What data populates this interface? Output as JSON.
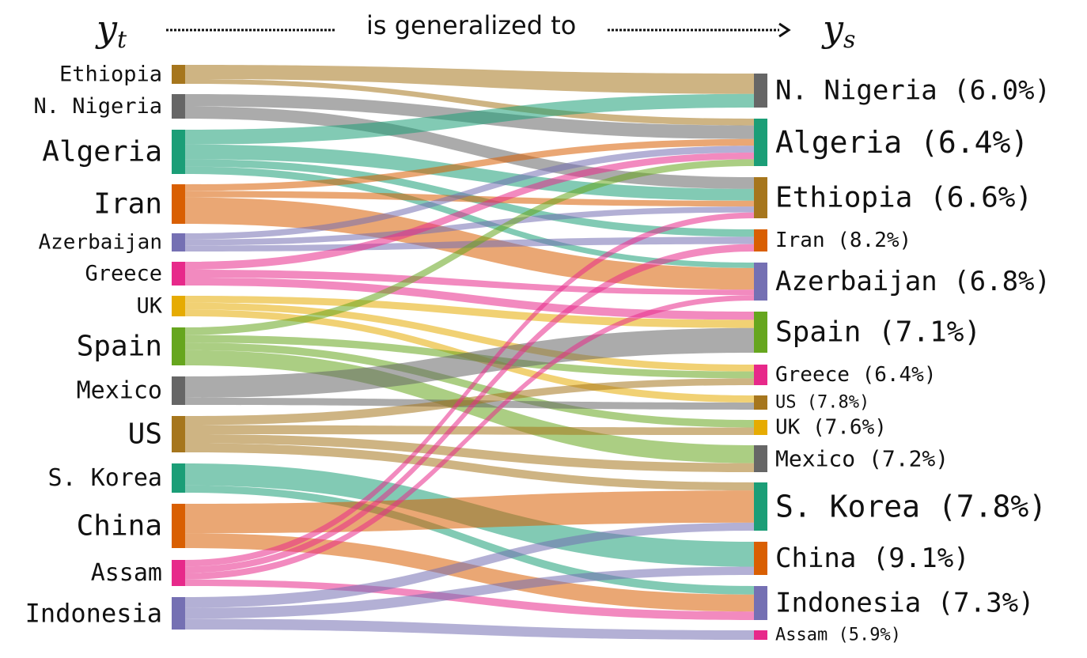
{
  "header": {
    "left_var": "y",
    "left_sub": "t",
    "middle": "is generalized to",
    "right_var": "y",
    "right_sub": "s"
  },
  "colors": {
    "tan": "#a6761d",
    "gray": "#666666",
    "teal": "#1b9e77",
    "orange": "#d95f02",
    "purple": "#7570b3",
    "pink": "#e7298a",
    "yellow": "#e6ab02",
    "green": "#66a61e"
  },
  "left_nodes": [
    {
      "label": "Ethiopia",
      "color": "#a6761d"
    },
    {
      "label": "N. Nigeria",
      "color": "#666666"
    },
    {
      "label": "Algeria",
      "color": "#1b9e77"
    },
    {
      "label": "Iran",
      "color": "#d95f02"
    },
    {
      "label": "Azerbaijan",
      "color": "#7570b3"
    },
    {
      "label": "Greece",
      "color": "#e7298a"
    },
    {
      "label": "UK",
      "color": "#e6ab02"
    },
    {
      "label": "Spain",
      "color": "#66a61e"
    },
    {
      "label": "Mexico",
      "color": "#666666"
    },
    {
      "label": "US",
      "color": "#a6761d"
    },
    {
      "label": "S. Korea",
      "color": "#1b9e77"
    },
    {
      "label": "China",
      "color": "#d95f02"
    },
    {
      "label": "Assam",
      "color": "#e7298a"
    },
    {
      "label": "Indonesia",
      "color": "#7570b3"
    }
  ],
  "right_nodes": [
    {
      "label": "N. Nigeria (6.0%)",
      "color": "#666666"
    },
    {
      "label": "Algeria (6.4%)",
      "color": "#1b9e77"
    },
    {
      "label": "Ethiopia (6.6%)",
      "color": "#a6761d"
    },
    {
      "label": "Iran (8.2%)",
      "color": "#d95f02"
    },
    {
      "label": "Azerbaijan (6.8%)",
      "color": "#7570b3"
    },
    {
      "label": "Spain (7.1%)",
      "color": "#66a61e"
    },
    {
      "label": "Greece (6.4%)",
      "color": "#e7298a"
    },
    {
      "label": "US (7.8%)",
      "color": "#a6761d"
    },
    {
      "label": "UK (7.6%)",
      "color": "#e6ab02"
    },
    {
      "label": "Mexico (7.2%)",
      "color": "#666666"
    },
    {
      "label": "S. Korea (7.8%)",
      "color": "#1b9e77"
    },
    {
      "label": "China (9.1%)",
      "color": "#d95f02"
    },
    {
      "label": "Indonesia (7.3%)",
      "color": "#7570b3"
    },
    {
      "label": "Assam (5.9%)",
      "color": "#e7298a"
    }
  ],
  "flows": [
    {
      "source": "Ethiopia",
      "target": "N. Nigeria (6.0%)",
      "weight": 3
    },
    {
      "source": "Ethiopia",
      "target": "Algeria (6.4%)",
      "weight": 1
    },
    {
      "source": "N. Nigeria",
      "target": "Algeria (6.4%)",
      "weight": 2
    },
    {
      "source": "N. Nigeria",
      "target": "Ethiopia (6.6%)",
      "weight": 2
    },
    {
      "source": "Algeria",
      "target": "N. Nigeria (6.0%)",
      "weight": 2
    },
    {
      "source": "Algeria",
      "target": "Ethiopia (6.6%)",
      "weight": 2
    },
    {
      "source": "Algeria",
      "target": "Iran (8.2%)",
      "weight": 1
    },
    {
      "source": "Algeria",
      "target": "Azerbaijan (6.8%)",
      "weight": 1
    },
    {
      "source": "Iran",
      "target": "Algeria (6.4%)",
      "weight": 1
    },
    {
      "source": "Iran",
      "target": "Ethiopia (6.6%)",
      "weight": 1
    },
    {
      "source": "Iran",
      "target": "Azerbaijan (6.8%)",
      "weight": 4
    },
    {
      "source": "Azerbaijan",
      "target": "Algeria (6.4%)",
      "weight": 1
    },
    {
      "source": "Azerbaijan",
      "target": "Ethiopia (6.6%)",
      "weight": 1
    },
    {
      "source": "Azerbaijan",
      "target": "Iran (8.2%)",
      "weight": 1
    },
    {
      "source": "Greece",
      "target": "Algeria (6.4%)",
      "weight": 1
    },
    {
      "source": "Greece",
      "target": "Azerbaijan (6.8%)",
      "weight": 1
    },
    {
      "source": "Greece",
      "target": "Spain (7.1%)",
      "weight": 1
    },
    {
      "source": "UK",
      "target": "Spain (7.1%)",
      "weight": 1
    },
    {
      "source": "UK",
      "target": "Greece (6.4%)",
      "weight": 1
    },
    {
      "source": "UK",
      "target": "US (7.8%)",
      "weight": 1
    },
    {
      "source": "Spain",
      "target": "Algeria (6.4%)",
      "weight": 1
    },
    {
      "source": "Spain",
      "target": "Greece (6.4%)",
      "weight": 1
    },
    {
      "source": "Spain",
      "target": "UK (7.6%)",
      "weight": 1
    },
    {
      "source": "Spain",
      "target": "Mexico (7.2%)",
      "weight": 2
    },
    {
      "source": "Mexico",
      "target": "Spain (7.1%)",
      "weight": 3
    },
    {
      "source": "Mexico",
      "target": "US (7.8%)",
      "weight": 1
    },
    {
      "source": "US",
      "target": "Greece (6.4%)",
      "weight": 1
    },
    {
      "source": "US",
      "target": "UK (7.6%)",
      "weight": 1
    },
    {
      "source": "US",
      "target": "Mexico (7.2%)",
      "weight": 1
    },
    {
      "source": "US",
      "target": "S. Korea (7.8%)",
      "weight": 1
    },
    {
      "source": "S. Korea",
      "target": "China (9.1%)",
      "weight": 3
    },
    {
      "source": "S. Korea",
      "target": "Indonesia (7.3%)",
      "weight": 1
    },
    {
      "source": "China",
      "target": "S. Korea (7.8%)",
      "weight": 4
    },
    {
      "source": "China",
      "target": "Indonesia (7.3%)",
      "weight": 2
    },
    {
      "source": "Assam",
      "target": "Ethiopia (6.6%)",
      "weight": 1
    },
    {
      "source": "Assam",
      "target": "Iran (8.2%)",
      "weight": 1
    },
    {
      "source": "Assam",
      "target": "Azerbaijan (6.8%)",
      "weight": 1
    },
    {
      "source": "Assam",
      "target": "Indonesia (7.3%)",
      "weight": 1
    },
    {
      "source": "Indonesia",
      "target": "S. Korea (7.8%)",
      "weight": 1
    },
    {
      "source": "Indonesia",
      "target": "China (9.1%)",
      "weight": 1
    },
    {
      "source": "Indonesia",
      "target": "Assam (5.9%)",
      "weight": 1
    }
  ]
}
